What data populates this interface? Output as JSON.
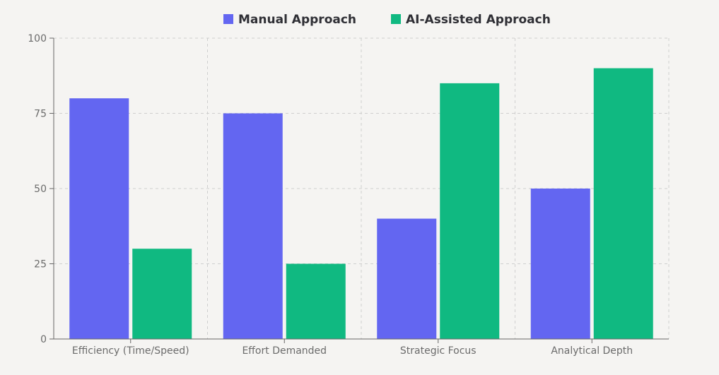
{
  "chart_data": {
    "type": "bar",
    "title": "",
    "xlabel": "",
    "ylabel": "",
    "categories": [
      "Efficiency (Time/Speed)",
      "Effort Demanded",
      "Strategic Focus",
      "Analytical Depth"
    ],
    "series": [
      {
        "name": "Manual Approach",
        "color": "#6366f1",
        "values": [
          80,
          75,
          40,
          50
        ]
      },
      {
        "name": "AI-Assisted Approach",
        "color": "#10b981",
        "values": [
          30,
          25,
          85,
          90
        ]
      }
    ],
    "ylim": [
      0,
      100
    ],
    "yticks": [
      0,
      25,
      50,
      75,
      100
    ],
    "grid": true,
    "legend_position": "top-center"
  }
}
